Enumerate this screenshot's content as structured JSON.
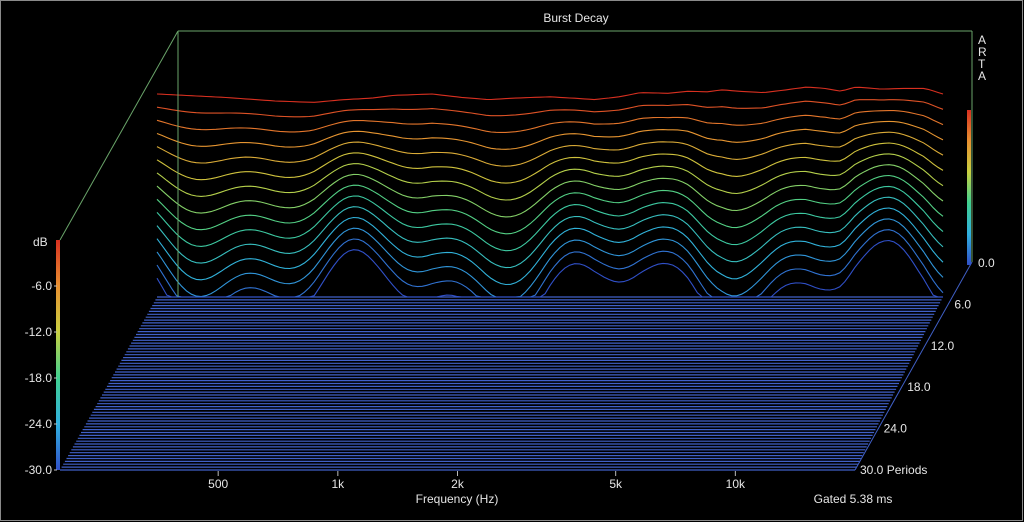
{
  "chart_data": {
    "type": "waterfall",
    "title": "Burst Decay",
    "brand": "ARTA",
    "xlabel": "Frequency (Hz)",
    "footer": "Gated 5.38 ms",
    "x_scale": "log",
    "xlim": [
      200,
      20000
    ],
    "x_ticks": [
      {
        "value": 500,
        "label": "500"
      },
      {
        "value": 1000,
        "label": "1k"
      },
      {
        "value": 2000,
        "label": "2k"
      },
      {
        "value": 5000,
        "label": "5k"
      },
      {
        "value": 10000,
        "label": "10k"
      }
    ],
    "zlabel": "dB",
    "zlim": [
      -30,
      0
    ],
    "z_ticks": [
      "-6.0",
      "-12.0",
      "-18.0",
      "-24.0",
      "-30.0"
    ],
    "periods_axis": {
      "unit": "Periods",
      "range": [
        0,
        30
      ],
      "ticks": [
        "0.0",
        "6.0",
        "12.0",
        "18.0",
        "24.0",
        "30.0 Periods"
      ]
    },
    "grid": false,
    "colorbar": true,
    "colors": {
      "background": "#000000",
      "floor": "#4060c8",
      "axis_frame": "#6aa56a",
      "colormap": [
        "#3050c8",
        "#30b0e0",
        "#40d090",
        "#c8d040",
        "#e89030",
        "#d83020"
      ]
    },
    "front_slice_dB": {
      "freq": [
        200,
        300,
        400,
        500,
        600,
        700,
        800,
        1000,
        1200,
        1400,
        1600,
        2000,
        2300,
        2600,
        3000,
        3400,
        4000,
        4500,
        5000,
        5500,
        6000,
        7000,
        8000,
        9000,
        10000,
        11000,
        12000,
        14000,
        16000,
        18000,
        20000
      ],
      "db": [
        -1.0,
        -1.5,
        -2.0,
        -2.2,
        -1.8,
        -1.6,
        -1.2,
        -1.0,
        -1.5,
        -1.8,
        -1.6,
        -1.4,
        -1.6,
        -1.8,
        -1.4,
        -0.8,
        -0.9,
        -0.6,
        -0.7,
        -0.4,
        -0.6,
        -0.8,
        -0.4,
        0.0,
        -0.2,
        -0.6,
        0.0,
        -0.3,
        -0.2,
        -0.2,
        -1.0
      ]
    }
  }
}
